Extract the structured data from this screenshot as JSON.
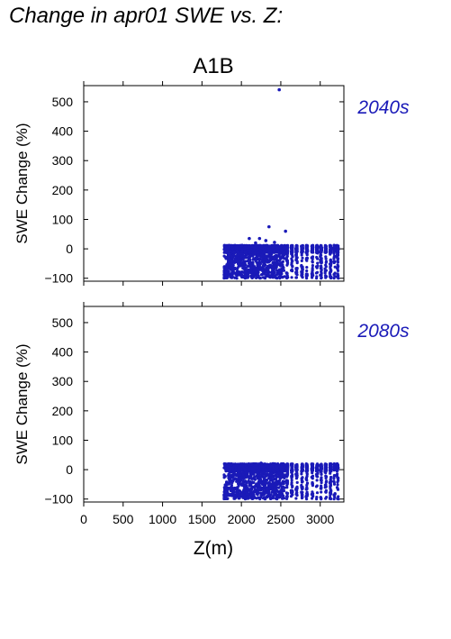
{
  "title": "Change in apr01 SWE vs. Z:",
  "subtitle": "A1B",
  "colors": {
    "points": "#1a1ab8",
    "period_label": "#1a1ab8",
    "axis": "#000000"
  },
  "chart_data": [
    {
      "type": "scatter",
      "panel_label": "2040s",
      "ylabel": "SWE Change (%)",
      "xlabel": "",
      "xlim": [
        0,
        3300
      ],
      "ylim": [
        -110,
        555
      ],
      "x_ticks": [
        0,
        500,
        1000,
        1500,
        2000,
        2500,
        3000
      ],
      "y_ticks": [
        -100,
        0,
        100,
        200,
        300,
        400,
        500
      ],
      "y_tick_labels": [
        "−100",
        "0",
        "100",
        "200",
        "300",
        "400",
        "500"
      ],
      "grid": false,
      "cloud": {
        "x_range": [
          1780,
          3220
        ],
        "y_range": [
          -100,
          12
        ],
        "dense_until_x": 2550
      },
      "outliers": [
        {
          "x": 2480,
          "y": 541
        },
        {
          "x": 2350,
          "y": 75
        },
        {
          "x": 2560,
          "y": 60
        },
        {
          "x": 2230,
          "y": 35
        },
        {
          "x": 2100,
          "y": 35
        },
        {
          "x": 2310,
          "y": 28
        },
        {
          "x": 2420,
          "y": 22
        },
        {
          "x": 2180,
          "y": 20
        }
      ]
    },
    {
      "type": "scatter",
      "panel_label": "2080s",
      "ylabel": "SWE Change (%)",
      "xlabel": "Z(m)",
      "xlim": [
        0,
        3300
      ],
      "ylim": [
        -110,
        555
      ],
      "x_ticks": [
        0,
        500,
        1000,
        1500,
        2000,
        2500,
        3000
      ],
      "x_tick_labels": [
        "0",
        "500",
        "1000",
        "1500",
        "2000",
        "2500",
        "3000"
      ],
      "y_ticks": [
        -100,
        0,
        100,
        200,
        300,
        400,
        500
      ],
      "y_tick_labels": [
        "−100",
        "0",
        "100",
        "200",
        "300",
        "400",
        "500"
      ],
      "grid": false,
      "cloud": {
        "x_range": [
          1780,
          3220
        ],
        "y_range": [
          -100,
          20
        ],
        "dense_until_x": 2550
      },
      "outliers": [
        {
          "x": 1810,
          "y": 12
        },
        {
          "x": 2250,
          "y": 22
        },
        {
          "x": 2400,
          "y": 20
        }
      ]
    }
  ]
}
